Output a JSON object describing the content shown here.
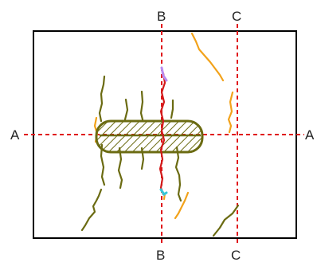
{
  "labels": {
    "section_a_left": "A",
    "section_a_right": "A",
    "section_b_top": "B",
    "section_b_bottom": "B",
    "section_c_top": "C",
    "section_c_bottom": "C"
  },
  "colors": {
    "frame": "#000000",
    "section_line": "#e0161b",
    "olive_crack": "#6b6b12",
    "orange_crack": "#f2a21a",
    "red_crack": "#d21a1a",
    "violet_mark": "#b98cf0",
    "cyan_mark": "#37c7d8",
    "background": "#ffffff"
  }
}
